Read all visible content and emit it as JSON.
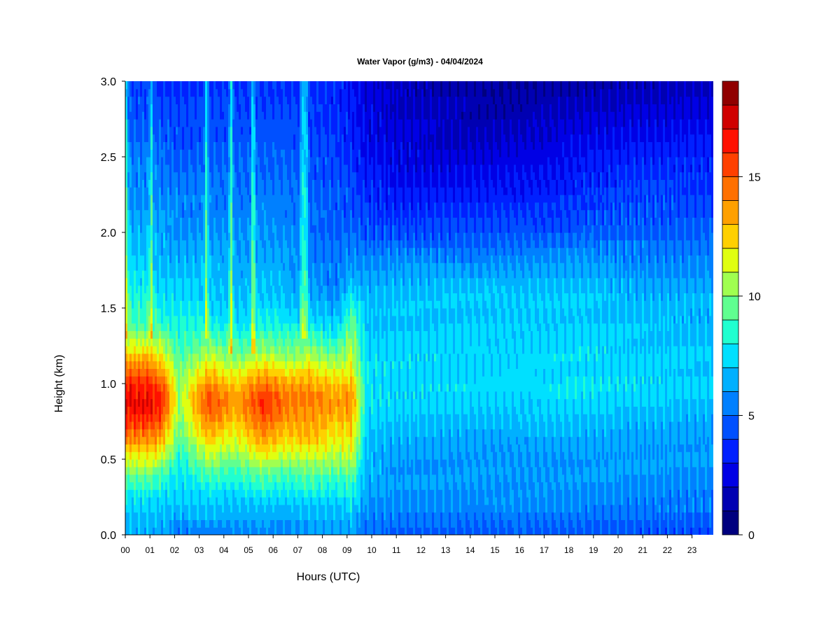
{
  "chart_data": {
    "type": "heatmap",
    "title": "Water Vapor (g/m3) - 04/04/2024",
    "xlabel": "Hours (UTC)",
    "ylabel": "Height (km)",
    "xlim": [
      0,
      23.9
    ],
    "ylim": [
      0,
      3
    ],
    "x_ticks": [
      "00",
      "01",
      "02",
      "03",
      "04",
      "05",
      "06",
      "07",
      "08",
      "09",
      "10",
      "11",
      "12",
      "13",
      "14",
      "15",
      "16",
      "17",
      "18",
      "19",
      "20",
      "21",
      "22",
      "23"
    ],
    "y_ticks": [
      "0.0",
      "0.5",
      "1.0",
      "1.5",
      "2.0",
      "2.5",
      "3.0"
    ],
    "colorbar": {
      "min": 0,
      "max": 19,
      "ticks": [
        "0",
        "5",
        "10",
        "15"
      ],
      "levels": [
        "#00007f",
        "#0000b2",
        "#0000e5",
        "#0020ff",
        "#0050ff",
        "#0080ff",
        "#00b0ff",
        "#00e0ff",
        "#20ffd0",
        "#60ff90",
        "#a0ff50",
        "#e0ff10",
        "#ffd000",
        "#ffa000",
        "#ff7000",
        "#ff4000",
        "#ff1000",
        "#d00000",
        "#900000"
      ]
    },
    "profile_heights_km": [
      0.0,
      0.2,
      0.4,
      0.6,
      0.8,
      0.9,
      1.0,
      1.2,
      1.4,
      1.6,
      1.8,
      2.0,
      2.2,
      2.4,
      2.6,
      2.8,
      3.0
    ],
    "profiles": [
      {
        "hour": 0.0,
        "values": [
          6.5,
          7.2,
          9.5,
          13.5,
          16.5,
          17.0,
          16.0,
          12.5,
          9.0,
          8.0,
          7.0,
          6.5,
          6.0,
          5.5,
          5.0,
          4.5,
          4.0
        ]
      },
      {
        "hour": 1.0,
        "values": [
          6.5,
          7.2,
          9.5,
          13.5,
          16.5,
          17.0,
          16.0,
          12.5,
          9.0,
          8.0,
          7.0,
          6.5,
          6.0,
          5.5,
          5.0,
          4.5,
          4.0
        ]
      },
      {
        "hour": 1.5,
        "values": [
          6.0,
          7.0,
          9.0,
          12.5,
          15.5,
          16.5,
          15.0,
          11.5,
          8.5,
          7.5,
          6.8,
          6.2,
          5.8,
          5.3,
          4.8,
          4.3,
          3.9
        ]
      },
      {
        "hour": 2.2,
        "values": [
          5.5,
          6.8,
          7.5,
          9.0,
          10.0,
          10.5,
          10.0,
          9.0,
          8.0,
          7.2,
          6.5,
          6.0,
          5.5,
          5.0,
          4.5,
          4.0,
          3.8
        ]
      },
      {
        "hour": 3.4,
        "values": [
          5.5,
          7.0,
          9.0,
          12.0,
          15.0,
          15.5,
          14.0,
          10.5,
          8.0,
          7.0,
          6.5,
          6.0,
          5.5,
          5.0,
          4.6,
          4.2,
          3.8
        ]
      },
      {
        "hour": 4.5,
        "values": [
          5.5,
          6.8,
          8.5,
          11.0,
          13.0,
          13.5,
          12.5,
          9.5,
          7.5,
          6.8,
          6.2,
          5.8,
          5.4,
          5.0,
          4.6,
          4.2,
          3.8
        ]
      },
      {
        "hour": 5.6,
        "values": [
          5.5,
          7.0,
          9.5,
          13.0,
          15.5,
          16.0,
          14.5,
          10.5,
          8.0,
          7.0,
          6.5,
          6.0,
          5.5,
          5.0,
          4.6,
          4.2,
          3.8
        ]
      },
      {
        "hour": 6.5,
        "values": [
          5.5,
          6.8,
          9.0,
          12.0,
          14.0,
          14.5,
          13.5,
          10.0,
          7.8,
          6.8,
          6.2,
          5.8,
          5.4,
          5.0,
          4.6,
          4.2,
          3.8
        ]
      },
      {
        "hour": 7.5,
        "values": [
          5.8,
          7.0,
          9.5,
          12.5,
          14.0,
          14.5,
          13.5,
          10.5,
          7.5,
          6.2,
          5.5,
          5.2,
          5.0,
          4.6,
          4.3,
          4.0,
          3.7
        ]
      },
      {
        "hour": 8.6,
        "values": [
          5.8,
          7.0,
          9.0,
          11.5,
          13.0,
          13.5,
          12.5,
          9.5,
          7.0,
          5.8,
          5.2,
          4.9,
          4.6,
          4.3,
          4.0,
          3.7,
          3.4
        ]
      },
      {
        "hour": 9.2,
        "values": [
          6.0,
          7.5,
          9.5,
          12.0,
          13.5,
          14.0,
          13.0,
          11.0,
          9.5,
          7.5,
          6.0,
          5.0,
          4.5,
          4.0,
          3.5,
          3.2,
          3.0
        ]
      },
      {
        "hour": 9.8,
        "values": [
          5.0,
          6.0,
          6.5,
          7.0,
          7.5,
          7.6,
          7.6,
          7.3,
          7.0,
          6.5,
          5.5,
          4.5,
          3.8,
          3.2,
          2.8,
          2.5,
          2.2
        ]
      },
      {
        "hour": 11.0,
        "values": [
          4.8,
          5.8,
          6.0,
          6.3,
          7.0,
          7.2,
          7.3,
          7.2,
          7.0,
          6.8,
          5.8,
          4.5,
          3.5,
          2.8,
          2.3,
          2.0,
          1.8
        ]
      },
      {
        "hour": 14.0,
        "values": [
          4.6,
          5.8,
          6.0,
          6.2,
          6.9,
          7.2,
          7.4,
          7.3,
          7.1,
          6.9,
          5.8,
          4.4,
          3.4,
          2.5,
          1.8,
          1.5,
          1.1
        ]
      },
      {
        "hour": 16.0,
        "values": [
          4.6,
          5.8,
          6.0,
          6.2,
          7.0,
          7.3,
          7.5,
          7.4,
          7.2,
          7.0,
          5.9,
          4.5,
          3.5,
          2.7,
          2.1,
          1.4,
          1.0
        ]
      },
      {
        "hour": 18.5,
        "values": [
          4.5,
          5.8,
          6.0,
          6.3,
          7.0,
          7.4,
          7.6,
          7.4,
          7.2,
          7.0,
          6.0,
          4.8,
          4.0,
          3.2,
          2.5,
          1.8,
          1.3
        ]
      },
      {
        "hour": 21.0,
        "values": [
          4.5,
          5.6,
          5.9,
          6.2,
          6.8,
          7.2,
          7.3,
          7.1,
          6.9,
          6.6,
          5.8,
          5.0,
          4.3,
          3.7,
          2.9,
          2.1,
          1.5
        ]
      },
      {
        "hour": 23.9,
        "values": [
          4.4,
          5.5,
          5.8,
          6.1,
          6.6,
          7.0,
          7.1,
          6.9,
          6.7,
          6.4,
          5.6,
          4.9,
          4.3,
          3.7,
          3.0,
          2.2,
          1.7
        ]
      }
    ],
    "moist_streaks": [
      {
        "hour": 0.05,
        "base_km": 1.3,
        "boost": 3.0
      },
      {
        "hour": 1.05,
        "base_km": 1.3,
        "boost": 3.0
      },
      {
        "hour": 3.3,
        "base_km": 1.3,
        "boost": 3.5
      },
      {
        "hour": 4.3,
        "base_km": 1.2,
        "boost": 4.0
      },
      {
        "hour": 5.2,
        "base_km": 1.2,
        "boost": 4.0
      },
      {
        "hour": 7.2,
        "base_km": 1.3,
        "boost": 3.5
      },
      {
        "hour": 7.35,
        "base_km": 1.3,
        "boost": 3.5
      }
    ]
  }
}
